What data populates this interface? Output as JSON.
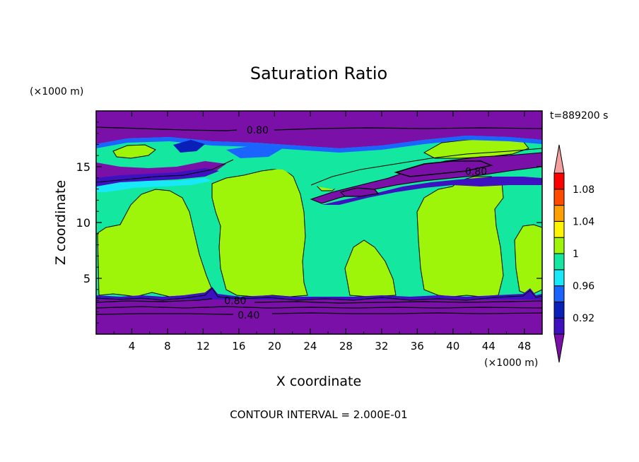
{
  "chart_data": {
    "type": "heatmap",
    "title": "Saturation Ratio",
    "xlabel": "X coordinate",
    "ylabel": "Z coordinate",
    "x_unit": "(×1000 m)",
    "y_unit": "(×1000 m)",
    "time_label": "t=889200 s",
    "footer": "CONTOUR INTERVAL = 2.000E-01",
    "xlim": [
      0,
      50
    ],
    "ylim": [
      0,
      20
    ],
    "x_ticks": [
      "4",
      "8",
      "12",
      "16",
      "20",
      "24",
      "28",
      "32",
      "36",
      "40",
      "44",
      "48"
    ],
    "y_ticks": [
      "5",
      "10",
      "15"
    ],
    "colorbar": {
      "levels": [
        0.9,
        0.92,
        0.94,
        0.96,
        0.98,
        1.0,
        1.02,
        1.04,
        1.06,
        1.08,
        1.1
      ],
      "colors": [
        "#7a10a8",
        "#3d10c0",
        "#0a1eb8",
        "#1a64ff",
        "#18e8f8",
        "#14e8a0",
        "#9ef50a",
        "#fff500",
        "#ffa000",
        "#ff4a00",
        "#ff0000",
        "#f3a0a0"
      ],
      "tick_labels": [
        "0.92",
        "0.96",
        "1",
        "1.04",
        "1.08"
      ]
    },
    "contour_labels": [
      {
        "value": "0.80",
        "x": 18.1,
        "z": 18.3
      },
      {
        "value": "0.80",
        "x": 42.6,
        "z": 14.6
      },
      {
        "value": "0.80",
        "x": 15.6,
        "z": 3.0
      },
      {
        "value": "0.40",
        "x": 17.1,
        "z": 1.7
      }
    ]
  }
}
